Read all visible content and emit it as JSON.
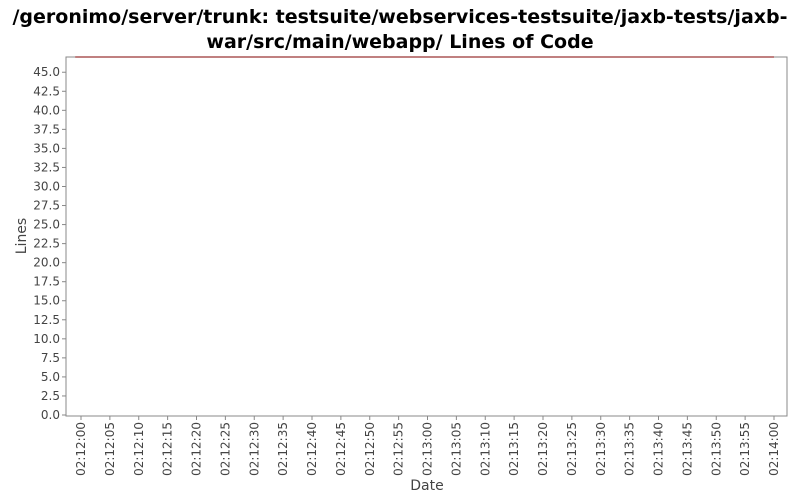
{
  "chart_data": {
    "type": "line",
    "title": "/geronimo/server/trunk: testsuite/webservices-testsuite/jaxb-tests/jaxb-\nwar/src/main/webapp/ Lines of Code",
    "xlabel": "Date",
    "ylabel": "Lines",
    "x_ticks": [
      "02:12:00",
      "02:12:05",
      "02:12:10",
      "02:12:15",
      "02:12:20",
      "02:12:25",
      "02:12:30",
      "02:12:35",
      "02:12:40",
      "02:12:45",
      "02:12:50",
      "02:12:55",
      "02:13:00",
      "02:13:05",
      "02:13:10",
      "02:13:15",
      "02:13:20",
      "02:13:25",
      "02:13:30",
      "02:13:35",
      "02:13:40",
      "02:13:45",
      "02:13:50",
      "02:13:55",
      "02:14:00"
    ],
    "y_ticks": [
      "0.0",
      "2.5",
      "5.0",
      "7.5",
      "10.0",
      "12.5",
      "15.0",
      "17.5",
      "20.0",
      "22.5",
      "25.0",
      "27.5",
      "30.0",
      "32.5",
      "35.0",
      "37.5",
      "40.0",
      "42.5",
      "45.0"
    ],
    "ylim": [
      0,
      47
    ],
    "xlim": [
      "02:11:59",
      "02:14:00"
    ],
    "series": [
      {
        "color": "#800000",
        "x": [
          "02:11:59",
          "02:14:00"
        ],
        "values": [
          47,
          47
        ]
      }
    ],
    "grid": false,
    "legend": "none"
  }
}
